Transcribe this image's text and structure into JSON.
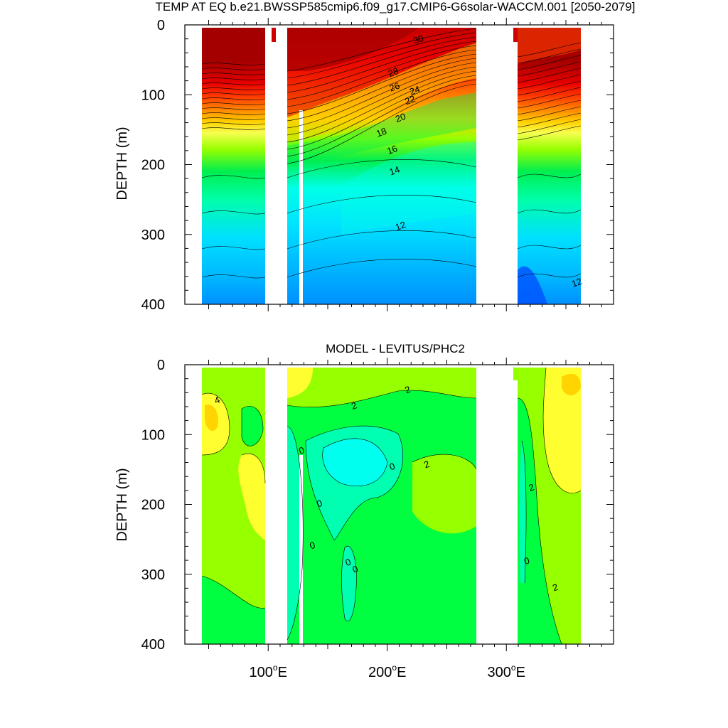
{
  "chart_data": [
    {
      "type": "heatmap",
      "title": "TEMP AT EQ b.e21.BWSSP585cmip6.f09_g17.CMIP6-G6solar-WACCM.001 [2050-2079]",
      "ylabel": "DEPTH (m)",
      "xlabel": "",
      "ylim": [
        400,
        0
      ],
      "y_ticks": [
        "0",
        "100",
        "200",
        "300",
        "400"
      ],
      "x_ticks": [
        "100",
        "200",
        "300"
      ],
      "x_tick_suffix": "E",
      "contour_labels": [
        {
          "text": "30",
          "lon": 227,
          "depth": 25
        },
        {
          "text": "28",
          "lon": 206,
          "depth": 72
        },
        {
          "text": "26",
          "lon": 207,
          "depth": 93
        },
        {
          "text": "24",
          "lon": 224,
          "depth": 98
        },
        {
          "text": "22",
          "lon": 220,
          "depth": 112
        },
        {
          "text": "20",
          "lon": 212,
          "depth": 137
        },
        {
          "text": "18",
          "lon": 196,
          "depth": 158
        },
        {
          "text": "16",
          "lon": 205,
          "depth": 183
        },
        {
          "text": "14",
          "lon": 207,
          "depth": 213
        },
        {
          "text": "12",
          "lon": 212,
          "depth": 292
        },
        {
          "text": "12",
          "lon": 360,
          "depth": 373
        }
      ]
    },
    {
      "type": "heatmap",
      "title": "MODEL - LEVITUS/PHC2",
      "ylabel": "DEPTH (m)",
      "xlabel": "",
      "ylim": [
        400,
        0
      ],
      "y_ticks": [
        "0",
        "100",
        "200",
        "300",
        "400"
      ],
      "x_ticks": [
        "100",
        "200",
        "300"
      ],
      "x_tick_suffix": "E",
      "contour_labels": [
        {
          "text": "4",
          "lon": 58,
          "depth": 55
        },
        {
          "text": "2",
          "lon": 218,
          "depth": 40
        },
        {
          "text": "2",
          "lon": 173,
          "depth": 63
        },
        {
          "text": "0",
          "lon": 129,
          "depth": 127
        },
        {
          "text": "0",
          "lon": 205,
          "depth": 150
        },
        {
          "text": "2",
          "lon": 234,
          "depth": 147
        },
        {
          "text": "0",
          "lon": 144,
          "depth": 203
        },
        {
          "text": "2",
          "lon": 322,
          "depth": 180
        },
        {
          "text": "0",
          "lon": 138,
          "depth": 263
        },
        {
          "text": "0",
          "lon": 168,
          "depth": 287
        },
        {
          "text": "0",
          "lon": 174,
          "depth": 297
        },
        {
          "text": "0",
          "lon": 318,
          "depth": 285
        },
        {
          "text": "2",
          "lon": 342,
          "depth": 323
        }
      ]
    }
  ],
  "colors": {
    "t30": "#a50000",
    "t28": "#e60000",
    "t26": "#ff3c00",
    "t24": "#ff8c00",
    "t22": "#ffd000",
    "t20": "#f7ff50",
    "t18": "#96ff00",
    "t16": "#00ee50",
    "t14": "#00ffa8",
    "t13": "#00ffe8",
    "t12": "#00e0ff",
    "t11": "#00b8ff",
    "t10": "#0090ff",
    "t9": "#0050ff",
    "d4": "#ffd400",
    "d3": "#ffff30",
    "d2": "#96ff00",
    "d1": "#00ff40",
    "d0": "#00ffb0",
    "dm1": "#00ffee"
  }
}
